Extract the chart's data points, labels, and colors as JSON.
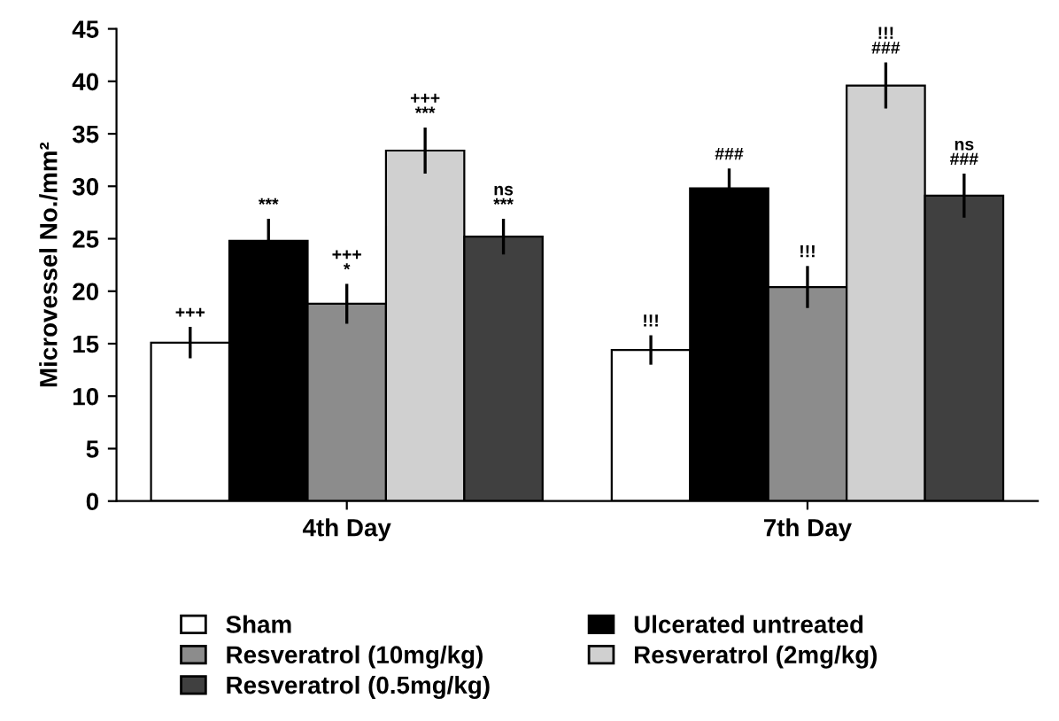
{
  "chart_data": {
    "type": "bar",
    "ylabel": "Microvessel No./mm²",
    "categories": [
      "4th Day",
      "7th Day"
    ],
    "series": [
      {
        "name": "Sham",
        "color": "#ffffff",
        "values": [
          15.1,
          14.4
        ],
        "errors": [
          1.5,
          1.4
        ]
      },
      {
        "name": "Ulcerated untreated",
        "color": "#000000",
        "values": [
          24.8,
          29.8
        ],
        "errors": [
          2.1,
          1.9
        ]
      },
      {
        "name": "Resveratrol (10mg/kg)",
        "color": "#8c8c8c",
        "values": [
          18.8,
          20.4
        ],
        "errors": [
          1.9,
          2.0
        ]
      },
      {
        "name": "Resveratrol (2mg/kg)",
        "color": "#d0d0d0",
        "values": [
          33.4,
          39.6
        ],
        "errors": [
          2.2,
          2.2
        ]
      },
      {
        "name": "Resveratrol (0.5mg/kg)",
        "color": "#404040",
        "values": [
          25.2,
          29.1
        ],
        "errors": [
          1.7,
          2.1
        ]
      }
    ],
    "annotations": [
      "+++",
      "***",
      "+++\n*",
      "+++\n***",
      "ns\n***",
      "!!!",
      "###",
      "!!!",
      "!!!\n###",
      "ns\n###"
    ],
    "ylim": [
      0,
      45
    ],
    "yticks": [
      0,
      5,
      10,
      15,
      20,
      25,
      30,
      35,
      40,
      45
    ],
    "grid": false,
    "legend": "bottom"
  }
}
